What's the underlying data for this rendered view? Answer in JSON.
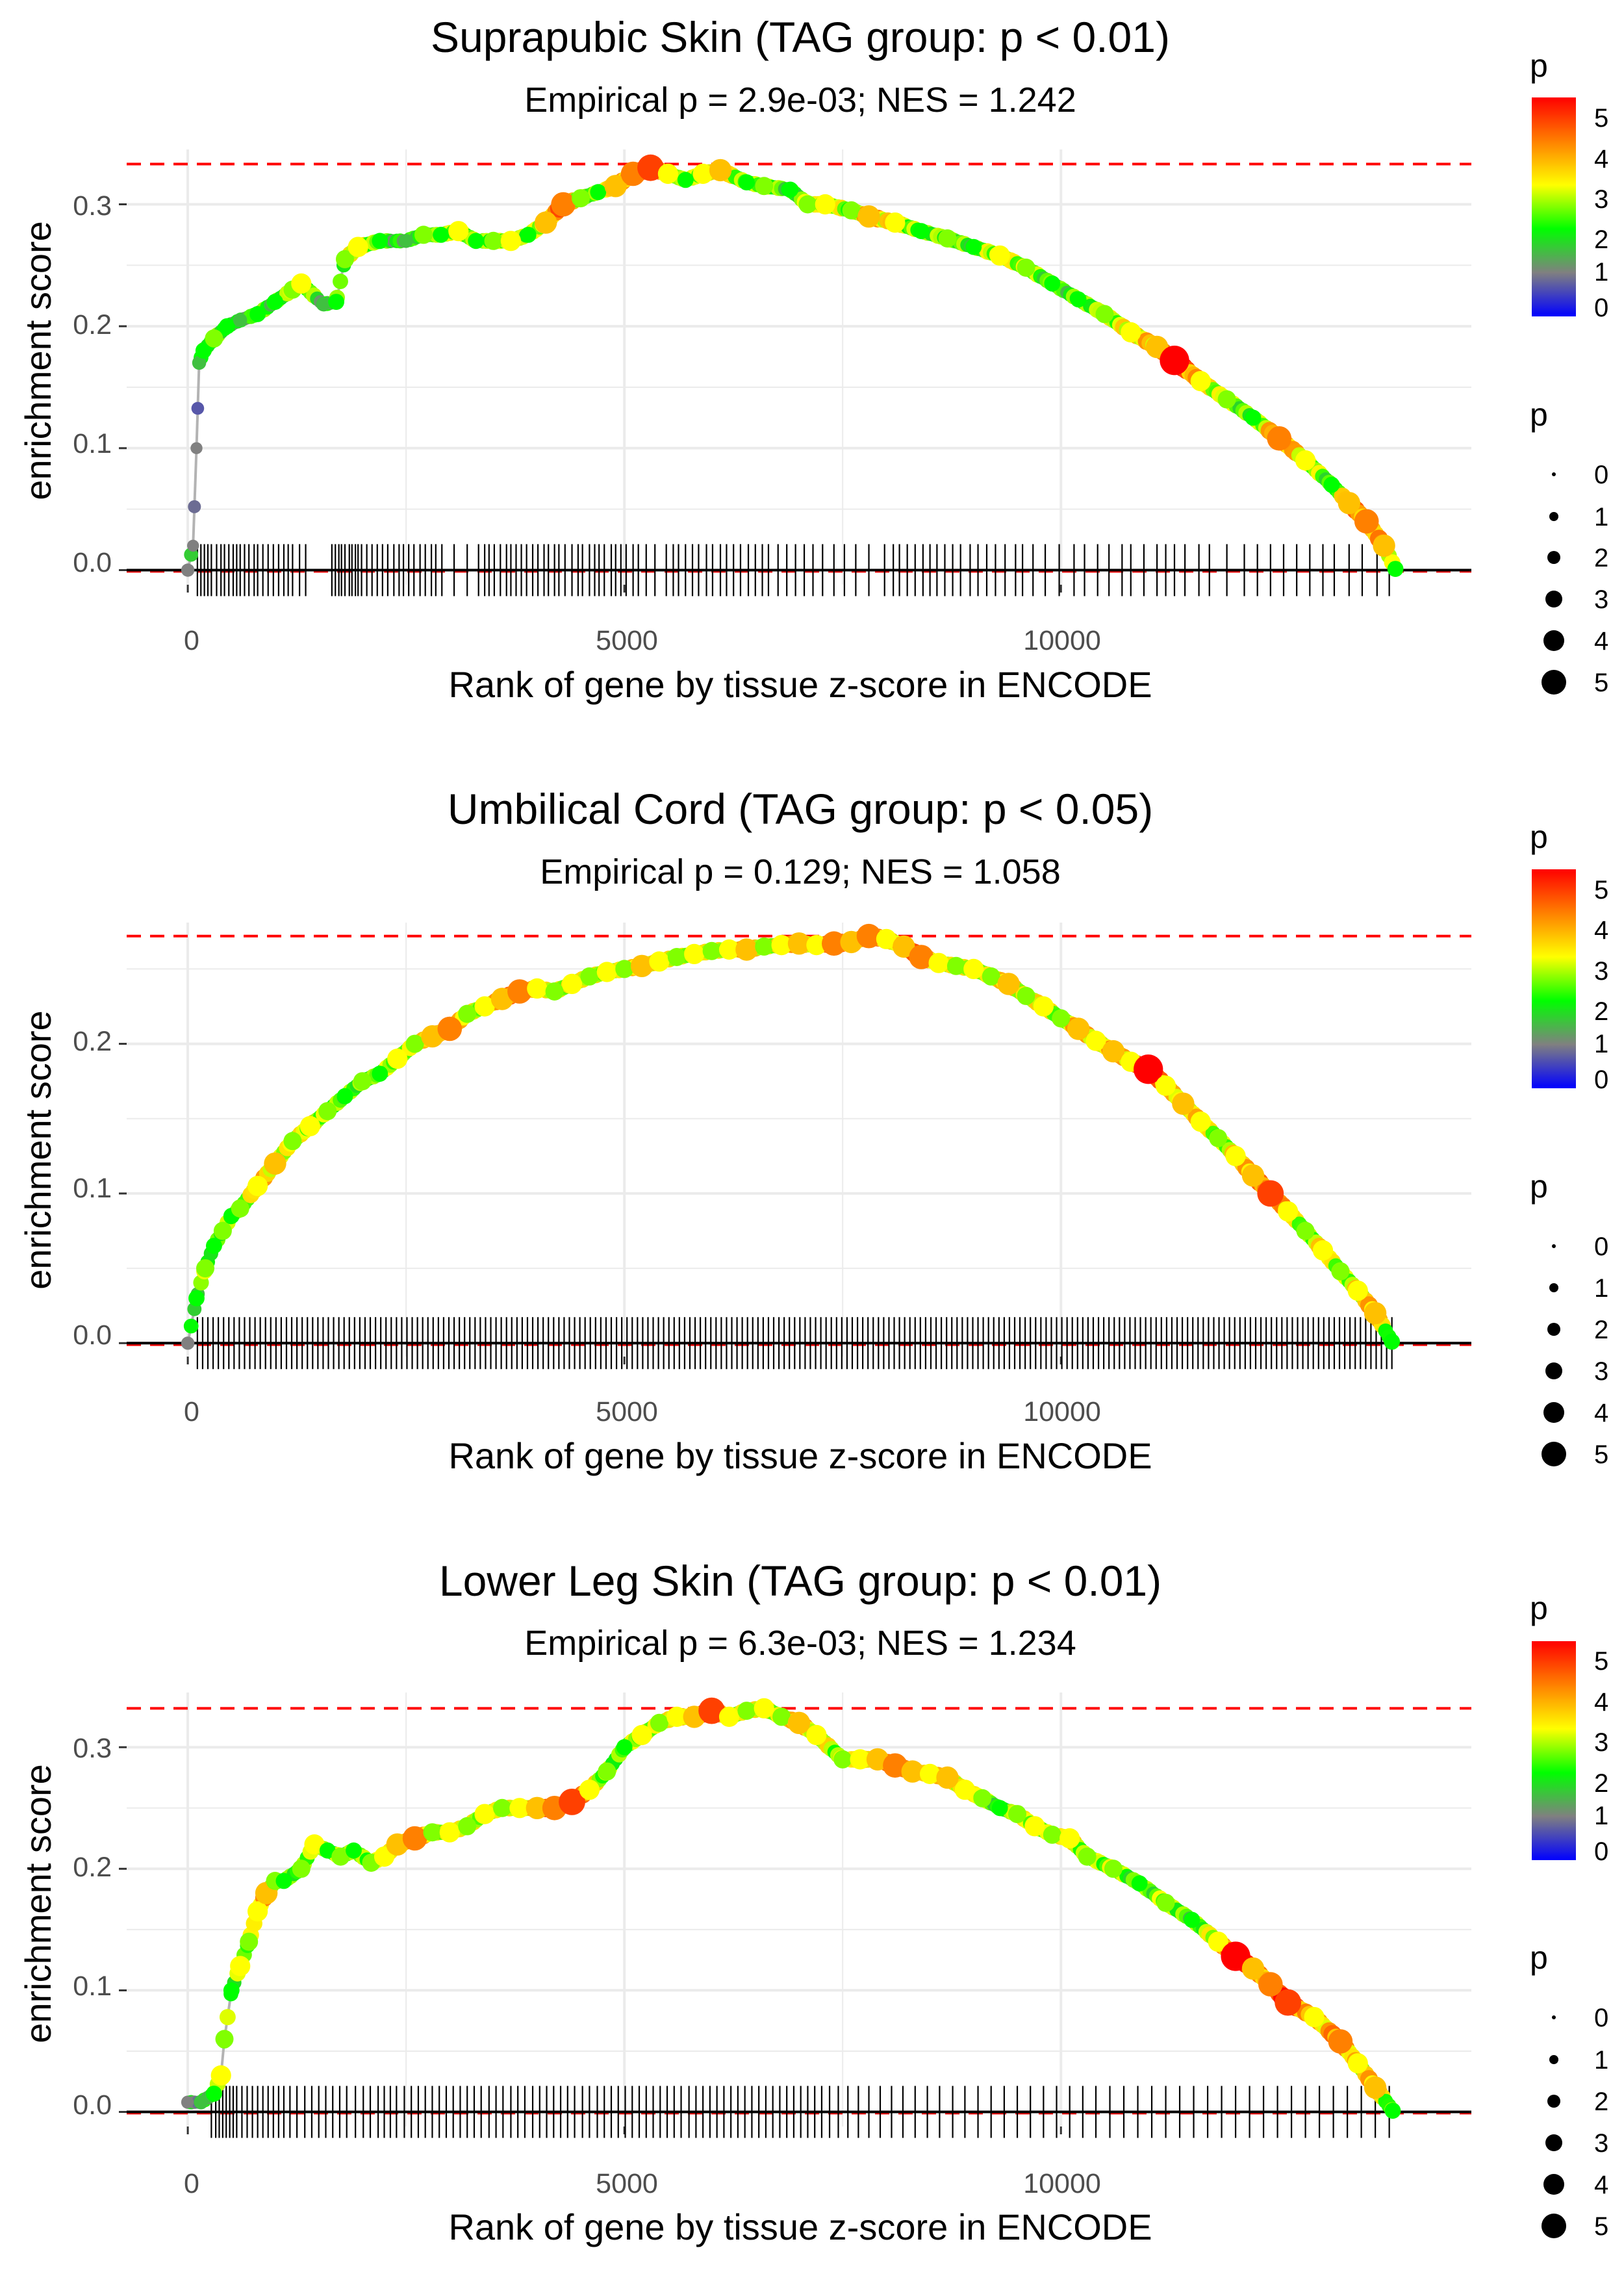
{
  "chart_data": [
    {
      "type": "line",
      "title": "Suprapubic Skin (TAG group: p < 0.01)",
      "subtitle": "Empirical p = 2.9e-03; NES = 1.242",
      "xlabel": "Rank of gene by tissue z-score in ENCODE",
      "ylabel": "enrichment score",
      "xlim": [
        -700,
        14700
      ],
      "ylim": [
        -0.012,
        0.345
      ],
      "x_ticks": [
        0,
        5000,
        10000
      ],
      "x_tick_labels": [
        "0",
        "5000",
        "10000"
      ],
      "y_ticks": [
        0.0,
        0.1,
        0.2,
        0.3
      ],
      "y_tick_labels": [
        "0.0",
        "0.1",
        "0.2",
        "0.3"
      ],
      "es_max": 0.333,
      "es_min": -0.001,
      "x": [
        0,
        60,
        100,
        130,
        180,
        300,
        450,
        600,
        800,
        1000,
        1200,
        1300,
        1550,
        1700,
        1800,
        1950,
        2200,
        2500,
        2700,
        2900,
        3100,
        3300,
        3500,
        3700,
        3900,
        4100,
        4300,
        4500,
        4700,
        4900,
        5100,
        5300,
        5500,
        5700,
        5900,
        6100,
        6400,
        6600,
        6900,
        7100,
        7300,
        7600,
        7800,
        8100,
        8400,
        8700,
        9000,
        9300,
        9600,
        9900,
        10200,
        10500,
        10800,
        11100,
        11300,
        11600,
        11900,
        12200,
        12500,
        12800,
        13100,
        13300,
        13500,
        13700,
        13830
      ],
      "es": [
        0.0,
        0.02,
        0.1,
        0.17,
        0.18,
        0.19,
        0.2,
        0.205,
        0.21,
        0.22,
        0.23,
        0.235,
        0.218,
        0.22,
        0.255,
        0.265,
        0.27,
        0.27,
        0.275,
        0.275,
        0.278,
        0.27,
        0.27,
        0.27,
        0.275,
        0.285,
        0.3,
        0.305,
        0.31,
        0.315,
        0.325,
        0.33,
        0.325,
        0.32,
        0.325,
        0.328,
        0.318,
        0.315,
        0.312,
        0.3,
        0.3,
        0.295,
        0.29,
        0.285,
        0.278,
        0.272,
        0.265,
        0.258,
        0.248,
        0.235,
        0.222,
        0.21,
        0.195,
        0.183,
        0.172,
        0.155,
        0.14,
        0.125,
        0.108,
        0.09,
        0.07,
        0.055,
        0.04,
        0.02,
        0.001
      ],
      "p": [
        1,
        1,
        1,
        1.5,
        2,
        2.5,
        2,
        1.5,
        2,
        2,
        2.5,
        3,
        1.5,
        2,
        2.5,
        3,
        2,
        1.5,
        2.5,
        2,
        3,
        2,
        2.5,
        3,
        2,
        3.5,
        4,
        2.5,
        2,
        3.5,
        4,
        4.5,
        3,
        2,
        3,
        3.5,
        2,
        2.5,
        2,
        2.5,
        3,
        2.5,
        3.5,
        3,
        2,
        2.5,
        2,
        3,
        2.5,
        2,
        2,
        2.5,
        3,
        3.5,
        5.2,
        3,
        2.5,
        2,
        4,
        3,
        2,
        3.5,
        4,
        3.5,
        2
      ],
      "hits": [
        110,
        150,
        190,
        230,
        270,
        330,
        380,
        420,
        470,
        520,
        560,
        600,
        650,
        700,
        760,
        800,
        860,
        920,
        980,
        1040,
        1100,
        1150,
        1200,
        1280,
        1350,
        1650,
        1690,
        1730,
        1760,
        1800,
        1850,
        1880,
        1920,
        1950,
        1990,
        2050,
        2110,
        2170,
        2230,
        2290,
        2360,
        2420,
        2470,
        2530,
        2590,
        2660,
        2720,
        2790,
        2840,
        2910,
        3050,
        3200,
        3330,
        3400,
        3450,
        3510,
        3580,
        3650,
        3700,
        3760,
        3820,
        3880,
        3950,
        4010,
        4080,
        4130,
        4200,
        4250,
        4320,
        4400,
        4470,
        4520,
        4600,
        4660,
        4710,
        4770,
        4850,
        4900,
        4960,
        5020,
        5100,
        5160,
        5250,
        5350,
        5480,
        5560,
        5620,
        5700,
        5780,
        5850,
        5940,
        6010,
        6100,
        6170,
        6250,
        6330,
        6420,
        6500,
        6580,
        6650,
        6760,
        6860,
        6960,
        7060,
        7160,
        7270,
        7400,
        7520,
        7650,
        7800,
        7980,
        8080,
        8150,
        8240,
        8330,
        8420,
        8500,
        8580,
        8670,
        8760,
        8850,
        8960,
        9050,
        9150,
        9250,
        9360,
        9480,
        9560,
        9680,
        9820,
        9980,
        10150,
        10270,
        10420,
        10550,
        10700,
        10800,
        10950,
        11100,
        11200,
        11300,
        11420,
        11580,
        11700,
        11900,
        12100,
        12250,
        12400,
        12550,
        12700,
        12850,
        13000,
        13130,
        13300,
        13450,
        13620,
        13760
      ]
    },
    {
      "type": "line",
      "title": "Umbilical Cord (TAG group: p < 0.05)",
      "subtitle": "Empirical p = 0.129; NES = 1.058",
      "xlabel": "Rank of gene by tissue z-score in ENCODE",
      "ylabel": "enrichment score",
      "xlim": [
        -700,
        14700
      ],
      "ylim": [
        -0.009,
        0.281
      ],
      "x_ticks": [
        0,
        5000,
        10000
      ],
      "x_tick_labels": [
        "0",
        "5000",
        "10000"
      ],
      "y_ticks": [
        0.0,
        0.1,
        0.2
      ],
      "y_tick_labels": [
        "0.0",
        "0.1",
        "0.2"
      ],
      "es_max": 0.272,
      "es_min": -0.001,
      "x": [
        0,
        100,
        200,
        300,
        400,
        500,
        600,
        800,
        1000,
        1200,
        1400,
        1600,
        1800,
        2000,
        2200,
        2400,
        2600,
        2800,
        3000,
        3200,
        3400,
        3600,
        3800,
        4000,
        4200,
        4400,
        4600,
        4800,
        5000,
        5200,
        5400,
        5600,
        5800,
        6000,
        6200,
        6400,
        6600,
        6800,
        7000,
        7200,
        7400,
        7600,
        7800,
        8000,
        8200,
        8400,
        8600,
        8800,
        9000,
        9200,
        9400,
        9600,
        9800,
        10000,
        10200,
        10400,
        10600,
        10800,
        11000,
        11200,
        11400,
        11600,
        11800,
        12000,
        12200,
        12400,
        12600,
        12800,
        13000,
        13200,
        13400,
        13600,
        13790
      ],
      "es": [
        0.0,
        0.03,
        0.05,
        0.065,
        0.075,
        0.085,
        0.09,
        0.105,
        0.12,
        0.135,
        0.145,
        0.155,
        0.165,
        0.175,
        0.18,
        0.19,
        0.2,
        0.205,
        0.21,
        0.22,
        0.225,
        0.23,
        0.235,
        0.237,
        0.235,
        0.24,
        0.245,
        0.248,
        0.25,
        0.252,
        0.255,
        0.258,
        0.26,
        0.262,
        0.263,
        0.263,
        0.265,
        0.266,
        0.267,
        0.266,
        0.267,
        0.268,
        0.272,
        0.27,
        0.265,
        0.258,
        0.254,
        0.252,
        0.25,
        0.245,
        0.24,
        0.232,
        0.225,
        0.217,
        0.21,
        0.202,
        0.195,
        0.188,
        0.183,
        0.172,
        0.16,
        0.148,
        0.137,
        0.125,
        0.112,
        0.1,
        0.088,
        0.075,
        0.062,
        0.048,
        0.035,
        0.02,
        0.001
      ],
      "p": [
        1,
        2,
        2.5,
        2,
        2.5,
        2,
        2.5,
        3,
        3.5,
        2.5,
        3,
        2.5,
        2,
        2.5,
        2,
        3,
        2.5,
        3.5,
        4,
        2.5,
        3,
        3.5,
        4,
        3,
        2.5,
        3,
        2.5,
        3,
        2.5,
        3.5,
        3,
        2.5,
        3,
        2.5,
        3,
        3.5,
        2.5,
        3,
        3.5,
        3,
        4,
        3.5,
        4,
        3,
        3.5,
        4,
        3,
        2.5,
        3,
        2.5,
        3.5,
        2.5,
        3,
        2.5,
        3.5,
        3,
        3.5,
        3,
        5.2,
        3,
        3.5,
        3,
        2.5,
        3,
        3.5,
        4.5,
        3,
        2.5,
        3,
        2.5,
        3,
        3.5,
        2
      ],
      "hits": [
        110,
        170,
        230,
        290,
        350,
        410,
        470,
        530,
        590,
        650,
        710,
        770,
        830,
        890,
        950,
        1010,
        1070,
        1130,
        1190,
        1250,
        1310,
        1370,
        1430,
        1490,
        1550,
        1610,
        1670,
        1730,
        1790,
        1850,
        1910,
        1970,
        2030,
        2090,
        2150,
        2210,
        2270,
        2330,
        2390,
        2450,
        2510,
        2570,
        2630,
        2690,
        2750,
        2810,
        2870,
        2930,
        2990,
        3050,
        3110,
        3170,
        3230,
        3290,
        3350,
        3410,
        3470,
        3530,
        3590,
        3650,
        3710,
        3770,
        3830,
        3890,
        3950,
        4010,
        4070,
        4130,
        4190,
        4250,
        4310,
        4370,
        4430,
        4490,
        4550,
        4610,
        4670,
        4730,
        4790,
        4850,
        4910,
        4970,
        5030,
        5090,
        5150,
        5210,
        5270,
        5330,
        5390,
        5450,
        5510,
        5570,
        5630,
        5690,
        5750,
        5810,
        5870,
        5930,
        5990,
        6050,
        6110,
        6170,
        6230,
        6290,
        6350,
        6410,
        6470,
        6530,
        6590,
        6650,
        6710,
        6770,
        6830,
        6890,
        6950,
        7010,
        7070,
        7130,
        7190,
        7250,
        7310,
        7370,
        7430,
        7490,
        7550,
        7610,
        7670,
        7730,
        7790,
        7850,
        7910,
        7970,
        8030,
        8090,
        8150,
        8210,
        8270,
        8330,
        8390,
        8450,
        8510,
        8570,
        8630,
        8690,
        8750,
        8810,
        8870,
        8930,
        8990,
        9050,
        9110,
        9170,
        9230,
        9290,
        9350,
        9410,
        9470,
        9530,
        9590,
        9650,
        9710,
        9770,
        9830,
        9890,
        9950,
        10010,
        10070,
        10130,
        10190,
        10250,
        10310,
        10370,
        10430,
        10490,
        10550,
        10610,
        10670,
        10730,
        10790,
        10850,
        10910,
        10970,
        11030,
        11090,
        11150,
        11210,
        11270,
        11330,
        11390,
        11450,
        11510,
        11570,
        11630,
        11690,
        11750,
        11810,
        11870,
        11930,
        11990,
        12050,
        12110,
        12170,
        12230,
        12290,
        12350,
        12410,
        12470,
        12530,
        12590,
        12650,
        12710,
        12770,
        12830,
        12890,
        12950,
        13010,
        13070,
        13130,
        13190,
        13250,
        13310,
        13370,
        13430,
        13490,
        13550,
        13610,
        13670,
        13730,
        13790
      ]
    },
    {
      "type": "line",
      "title": "Lower Leg Skin (TAG group: p < 0.01)",
      "subtitle": "Empirical p = 6.3e-03; NES = 1.234",
      "xlabel": "Rank of gene by tissue z-score in ENCODE",
      "ylabel": "enrichment score",
      "xlim": [
        -700,
        14700
      ],
      "ylim": [
        -0.012,
        0.345
      ],
      "x_ticks": [
        0,
        5000,
        10000
      ],
      "x_tick_labels": [
        "0",
        "5000",
        "10000"
      ],
      "y_ticks": [
        0.0,
        0.1,
        0.2,
        0.3
      ],
      "y_tick_labels": [
        "0.0",
        "0.1",
        "0.2",
        "0.3"
      ],
      "es_max": 0.332,
      "es_min": -0.001,
      "x": [
        0,
        150,
        300,
        380,
        420,
        500,
        600,
        700,
        800,
        900,
        1000,
        1100,
        1300,
        1450,
        1600,
        1750,
        1900,
        2100,
        2250,
        2400,
        2600,
        2800,
        3000,
        3200,
        3400,
        3600,
        3800,
        4000,
        4200,
        4400,
        4600,
        4800,
        5000,
        5200,
        5400,
        5600,
        5800,
        6000,
        6200,
        6400,
        6600,
        6800,
        7000,
        7200,
        7500,
        7700,
        7900,
        8100,
        8300,
        8500,
        8700,
        8900,
        9100,
        9300,
        9500,
        9700,
        9900,
        10100,
        10300,
        10600,
        10900,
        11200,
        11500,
        11800,
        12000,
        12200,
        12400,
        12600,
        12900,
        13200,
        13400,
        13600,
        13800
      ],
      "es": [
        0.008,
        0.008,
        0.015,
        0.03,
        0.06,
        0.1,
        0.12,
        0.14,
        0.165,
        0.18,
        0.19,
        0.19,
        0.2,
        0.22,
        0.215,
        0.21,
        0.215,
        0.205,
        0.21,
        0.22,
        0.225,
        0.23,
        0.23,
        0.235,
        0.245,
        0.25,
        0.25,
        0.25,
        0.25,
        0.255,
        0.265,
        0.28,
        0.3,
        0.31,
        0.32,
        0.325,
        0.325,
        0.33,
        0.325,
        0.33,
        0.332,
        0.325,
        0.32,
        0.31,
        0.29,
        0.29,
        0.29,
        0.285,
        0.28,
        0.278,
        0.275,
        0.265,
        0.258,
        0.25,
        0.245,
        0.235,
        0.228,
        0.225,
        0.21,
        0.2,
        0.188,
        0.172,
        0.158,
        0.14,
        0.128,
        0.118,
        0.105,
        0.09,
        0.078,
        0.058,
        0.04,
        0.02,
        0.001
      ],
      "p": [
        1,
        1.5,
        2,
        3,
        2.5,
        2,
        3,
        2.5,
        3,
        3.5,
        2.5,
        2,
        2.5,
        3,
        2,
        2.5,
        2,
        2.5,
        3,
        3.5,
        4,
        2.5,
        3,
        2.5,
        3,
        2.5,
        3,
        3.5,
        4,
        4.5,
        3,
        2.5,
        2,
        3,
        2.5,
        3,
        3.5,
        4.5,
        3,
        2.5,
        3,
        2.5,
        3.5,
        3,
        2.5,
        3,
        3.5,
        4,
        3.5,
        3,
        3.5,
        3,
        2.5,
        2,
        2.5,
        3,
        2.5,
        3,
        2.5,
        2.5,
        2,
        2.5,
        2,
        3,
        5.2,
        3.5,
        4,
        4.5,
        3,
        4,
        3,
        3.5,
        2
      ],
      "hits": [
        270,
        320,
        360,
        400,
        440,
        480,
        520,
        560,
        620,
        680,
        740,
        800,
        860,
        920,
        980,
        1040,
        1100,
        1170,
        1250,
        1340,
        1420,
        1500,
        1580,
        1660,
        1740,
        1820,
        1920,
        2010,
        2090,
        2180,
        2250,
        2320,
        2390,
        2480,
        2560,
        2640,
        2720,
        2800,
        2880,
        2960,
        3040,
        3120,
        3200,
        3280,
        3360,
        3450,
        3530,
        3610,
        3700,
        3780,
        3860,
        3950,
        4030,
        4110,
        4190,
        4270,
        4350,
        4430,
        4520,
        4600,
        4690,
        4770,
        4850,
        4930,
        5010,
        5090,
        5170,
        5250,
        5330,
        5410,
        5490,
        5570,
        5650,
        5740,
        5820,
        5900,
        5980,
        6060,
        6140,
        6220,
        6300,
        6380,
        6460,
        6540,
        6620,
        6700,
        6780,
        6860,
        6940,
        7020,
        7100,
        7180,
        7260,
        7350,
        7450,
        7560,
        7680,
        7800,
        7930,
        8060,
        8190,
        8330,
        8470,
        8610,
        8760,
        8900,
        9050,
        9200,
        9350,
        9500,
        9650,
        9800,
        9950,
        10100,
        10250,
        10400,
        10560,
        10720,
        10880,
        11040,
        11200,
        11360,
        11520,
        11680,
        11840,
        12000,
        12160,
        12320,
        12480,
        12640,
        12800,
        12960,
        13120,
        13280,
        13440,
        13600,
        13760
      ]
    }
  ],
  "legends": [
    {
      "color_title": "p",
      "color_ticks": [
        "5",
        "4",
        "3",
        "2",
        "1",
        "0"
      ],
      "size_title": "p",
      "size_labels": [
        "0",
        "1",
        "2",
        "3",
        "4",
        "5"
      ]
    },
    {
      "color_title": "p",
      "color_ticks": [
        "5",
        "4",
        "3",
        "2",
        "1",
        "0"
      ],
      "size_title": "p",
      "size_labels": [
        "0",
        "1",
        "2",
        "3",
        "4",
        "5"
      ]
    },
    {
      "color_title": "p",
      "color_ticks": [
        "5",
        "4",
        "3",
        "2",
        "1",
        "0"
      ],
      "size_title": "p",
      "size_labels": [
        "0",
        "1",
        "2",
        "3",
        "4",
        "5"
      ]
    }
  ],
  "colors": {
    "gradient": [
      "#0000ff",
      "#808080",
      "#00ff00",
      "#ffff00",
      "#ff8000",
      "#ff0000"
    ],
    "es_line": "#b3b3b3",
    "dashed_line": "#ff0000",
    "hit_tick": "#000000",
    "grid": "#ebebeb"
  }
}
